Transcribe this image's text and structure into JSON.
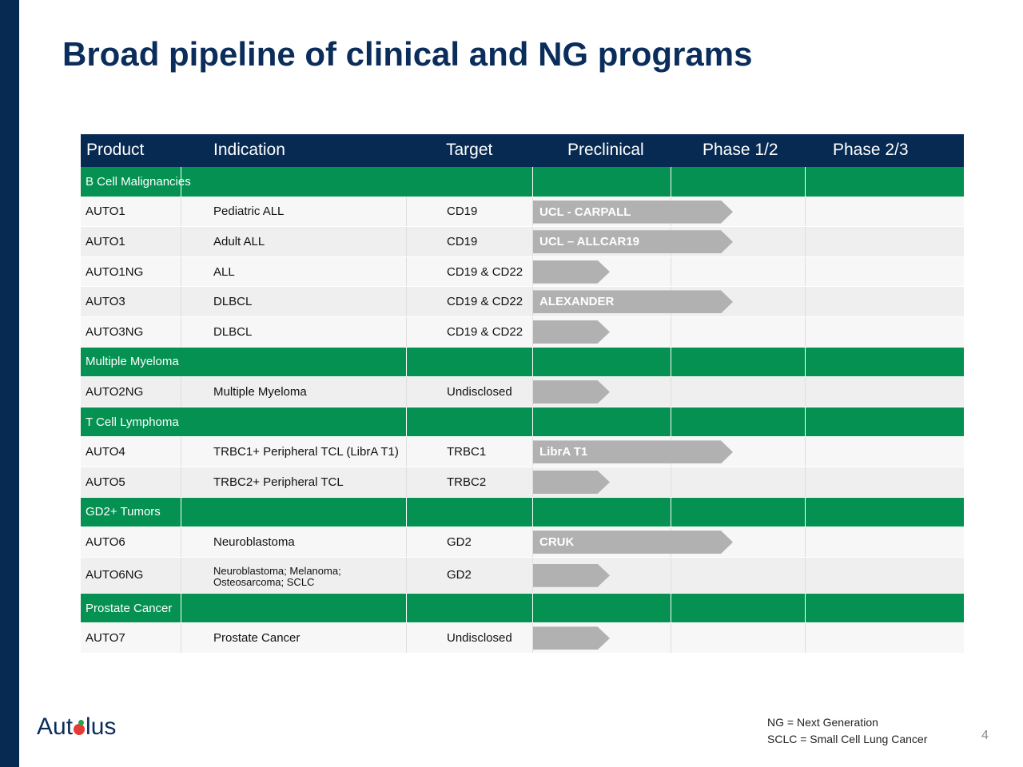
{
  "title": "Broad pipeline of clinical and NG programs",
  "table": {
    "headers": [
      "Product",
      "Indication",
      "Target",
      "Preclinical",
      "Phase 1/2",
      "Phase 2/3"
    ],
    "rows": [
      {
        "type": "section",
        "label": "B Cell Malignancies"
      },
      {
        "type": "item",
        "product": "AUTO1",
        "indication": "Pediatric ALL",
        "target": "CD19",
        "bar": "long",
        "bar_label": "UCL - CARPALL"
      },
      {
        "type": "item",
        "product": "AUTO1",
        "indication": "Adult ALL",
        "target": "CD19",
        "bar": "long",
        "bar_label": "UCL – ALLCAR19"
      },
      {
        "type": "item",
        "product": "AUTO1NG",
        "indication": "ALL",
        "target": "CD19 & CD22",
        "bar": "short",
        "bar_label": ""
      },
      {
        "type": "item",
        "product": "AUTO3",
        "indication": "DLBCL",
        "target": "CD19 & CD22",
        "bar": "long",
        "bar_label": "ALEXANDER"
      },
      {
        "type": "item",
        "product": "AUTO3NG",
        "indication": "DLBCL",
        "target": "CD19 & CD22",
        "bar": "short",
        "bar_label": ""
      },
      {
        "type": "section",
        "label": "Multiple Myeloma"
      },
      {
        "type": "item",
        "product": "AUTO2NG",
        "indication": "Multiple Myeloma",
        "target": "Undisclosed",
        "bar": "short",
        "bar_label": ""
      },
      {
        "type": "section",
        "label": "T Cell Lymphoma"
      },
      {
        "type": "item",
        "product": "AUTO4",
        "indication": "TRBC1+ Peripheral TCL (LibrA T1)",
        "target": "TRBC1",
        "bar": "long",
        "bar_label": "LibrA T1"
      },
      {
        "type": "item",
        "product": "AUTO5",
        "indication": "TRBC2+ Peripheral TCL",
        "target": "TRBC2",
        "bar": "short",
        "bar_label": ""
      },
      {
        "type": "section",
        "label": "GD2+ Tumors"
      },
      {
        "type": "item",
        "product": "AUTO6",
        "indication": "Neuroblastoma",
        "target": "GD2",
        "bar": "long",
        "bar_label": "CRUK"
      },
      {
        "type": "item",
        "product": "AUTO6NG",
        "indication": "Neuroblastoma; Melanoma; Osteosarcoma; SCLC",
        "target": "GD2",
        "bar": "short",
        "bar_label": "",
        "tall": true
      },
      {
        "type": "section",
        "label": "Prostate Cancer"
      },
      {
        "type": "item",
        "product": "AUTO7",
        "indication": "Prostate Cancer",
        "target": "Undisclosed",
        "bar": "short",
        "bar_label": ""
      }
    ]
  },
  "logo": {
    "text_before": "Aut",
    "text_after": "lus"
  },
  "footnotes": [
    "NG = Next Generation",
    "SCLC = Small Cell Lung Cancer"
  ],
  "page_number": "4"
}
